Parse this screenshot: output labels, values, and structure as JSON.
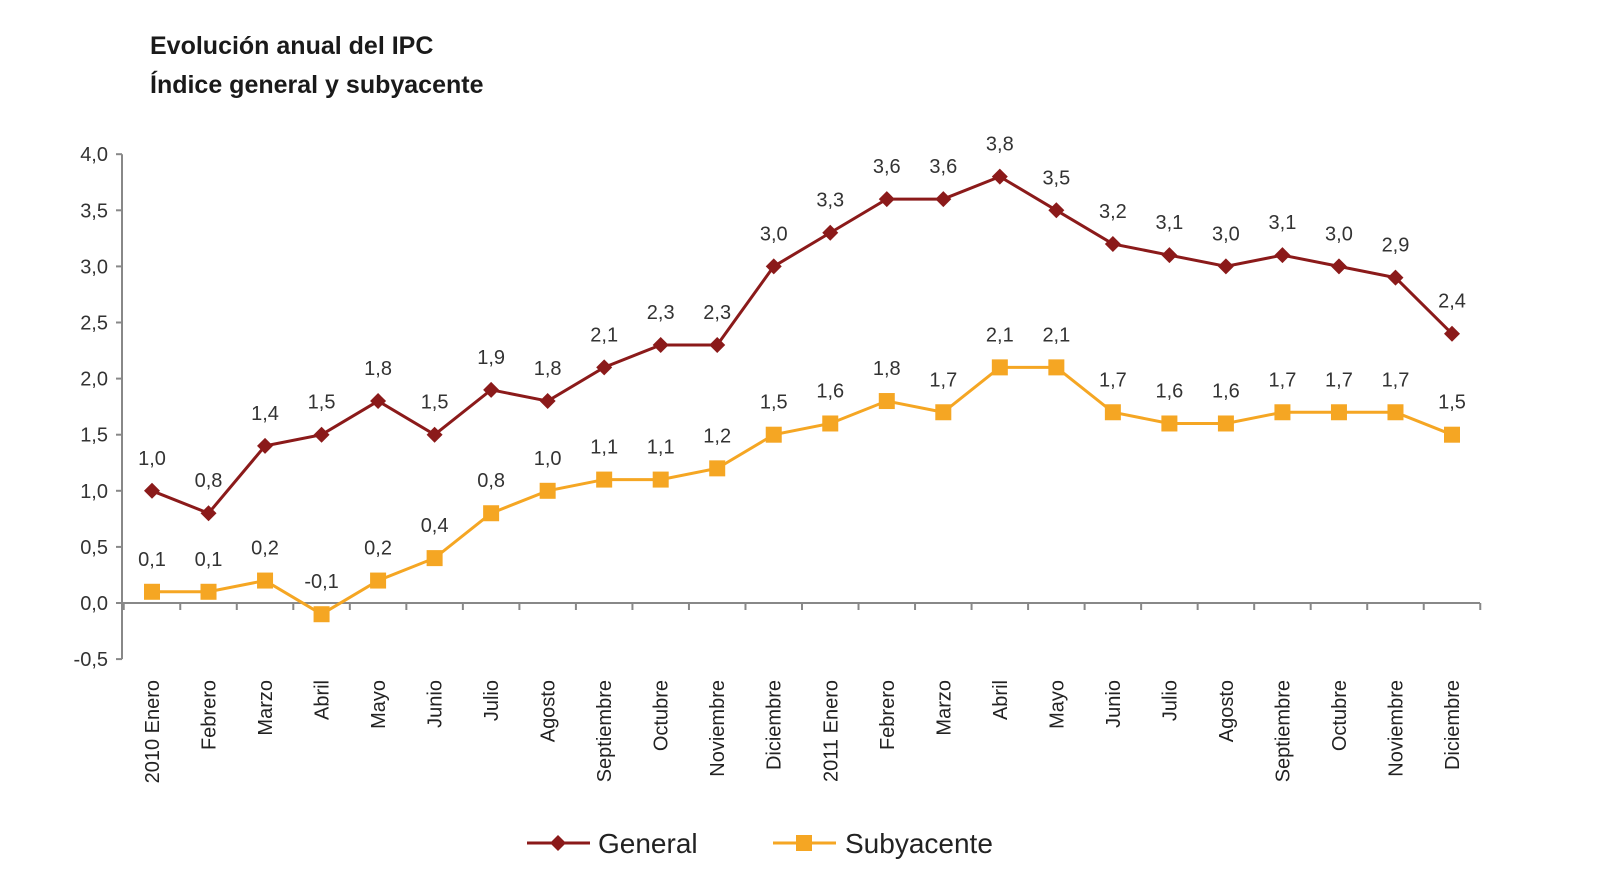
{
  "chart_data": {
    "type": "line",
    "title": "Evolución anual del IPC",
    "subtitle": "Índice general y subyacente",
    "xlabel": "",
    "ylabel": "",
    "ylim": [
      -0.5,
      4.0
    ],
    "yticks": [
      "4,0",
      "3,5",
      "3,0",
      "2,5",
      "2,0",
      "1,5",
      "1,0",
      "0,5",
      "0,0",
      "-0,5"
    ],
    "ytick_values": [
      4.0,
      3.5,
      3.0,
      2.5,
      2.0,
      1.5,
      1.0,
      0.5,
      0.0,
      -0.5
    ],
    "grid": false,
    "legend_position": "bottom",
    "categories": [
      "2010 Enero",
      "Febrero",
      "Marzo",
      "Abril",
      "Mayo",
      "Junio",
      "Julio",
      "Agosto",
      "Septiembre",
      "Octubre",
      "Noviembre",
      "Diciembre",
      "2011 Enero",
      "Febrero",
      "Marzo",
      "Abril",
      "Mayo",
      "Junio",
      "Julio",
      "Agosto",
      "Septiembre",
      "Octubre",
      "Noviembre",
      "Diciembre"
    ],
    "series": [
      {
        "name": "General",
        "color": "#8b1a1a",
        "marker": "diamond",
        "values": [
          1.0,
          0.8,
          1.4,
          1.5,
          1.8,
          1.5,
          1.9,
          1.8,
          2.1,
          2.3,
          2.3,
          3.0,
          3.3,
          3.6,
          3.6,
          3.8,
          3.5,
          3.2,
          3.1,
          3.0,
          3.1,
          3.0,
          2.9,
          2.4
        ]
      },
      {
        "name": "Subyacente",
        "color": "#f5a623",
        "marker": "square",
        "values": [
          0.1,
          0.1,
          0.2,
          -0.1,
          0.2,
          0.4,
          0.8,
          1.0,
          1.1,
          1.1,
          1.2,
          1.5,
          1.6,
          1.8,
          1.7,
          2.1,
          2.1,
          1.7,
          1.6,
          1.6,
          1.7,
          1.7,
          1.7,
          1.5
        ]
      }
    ]
  }
}
